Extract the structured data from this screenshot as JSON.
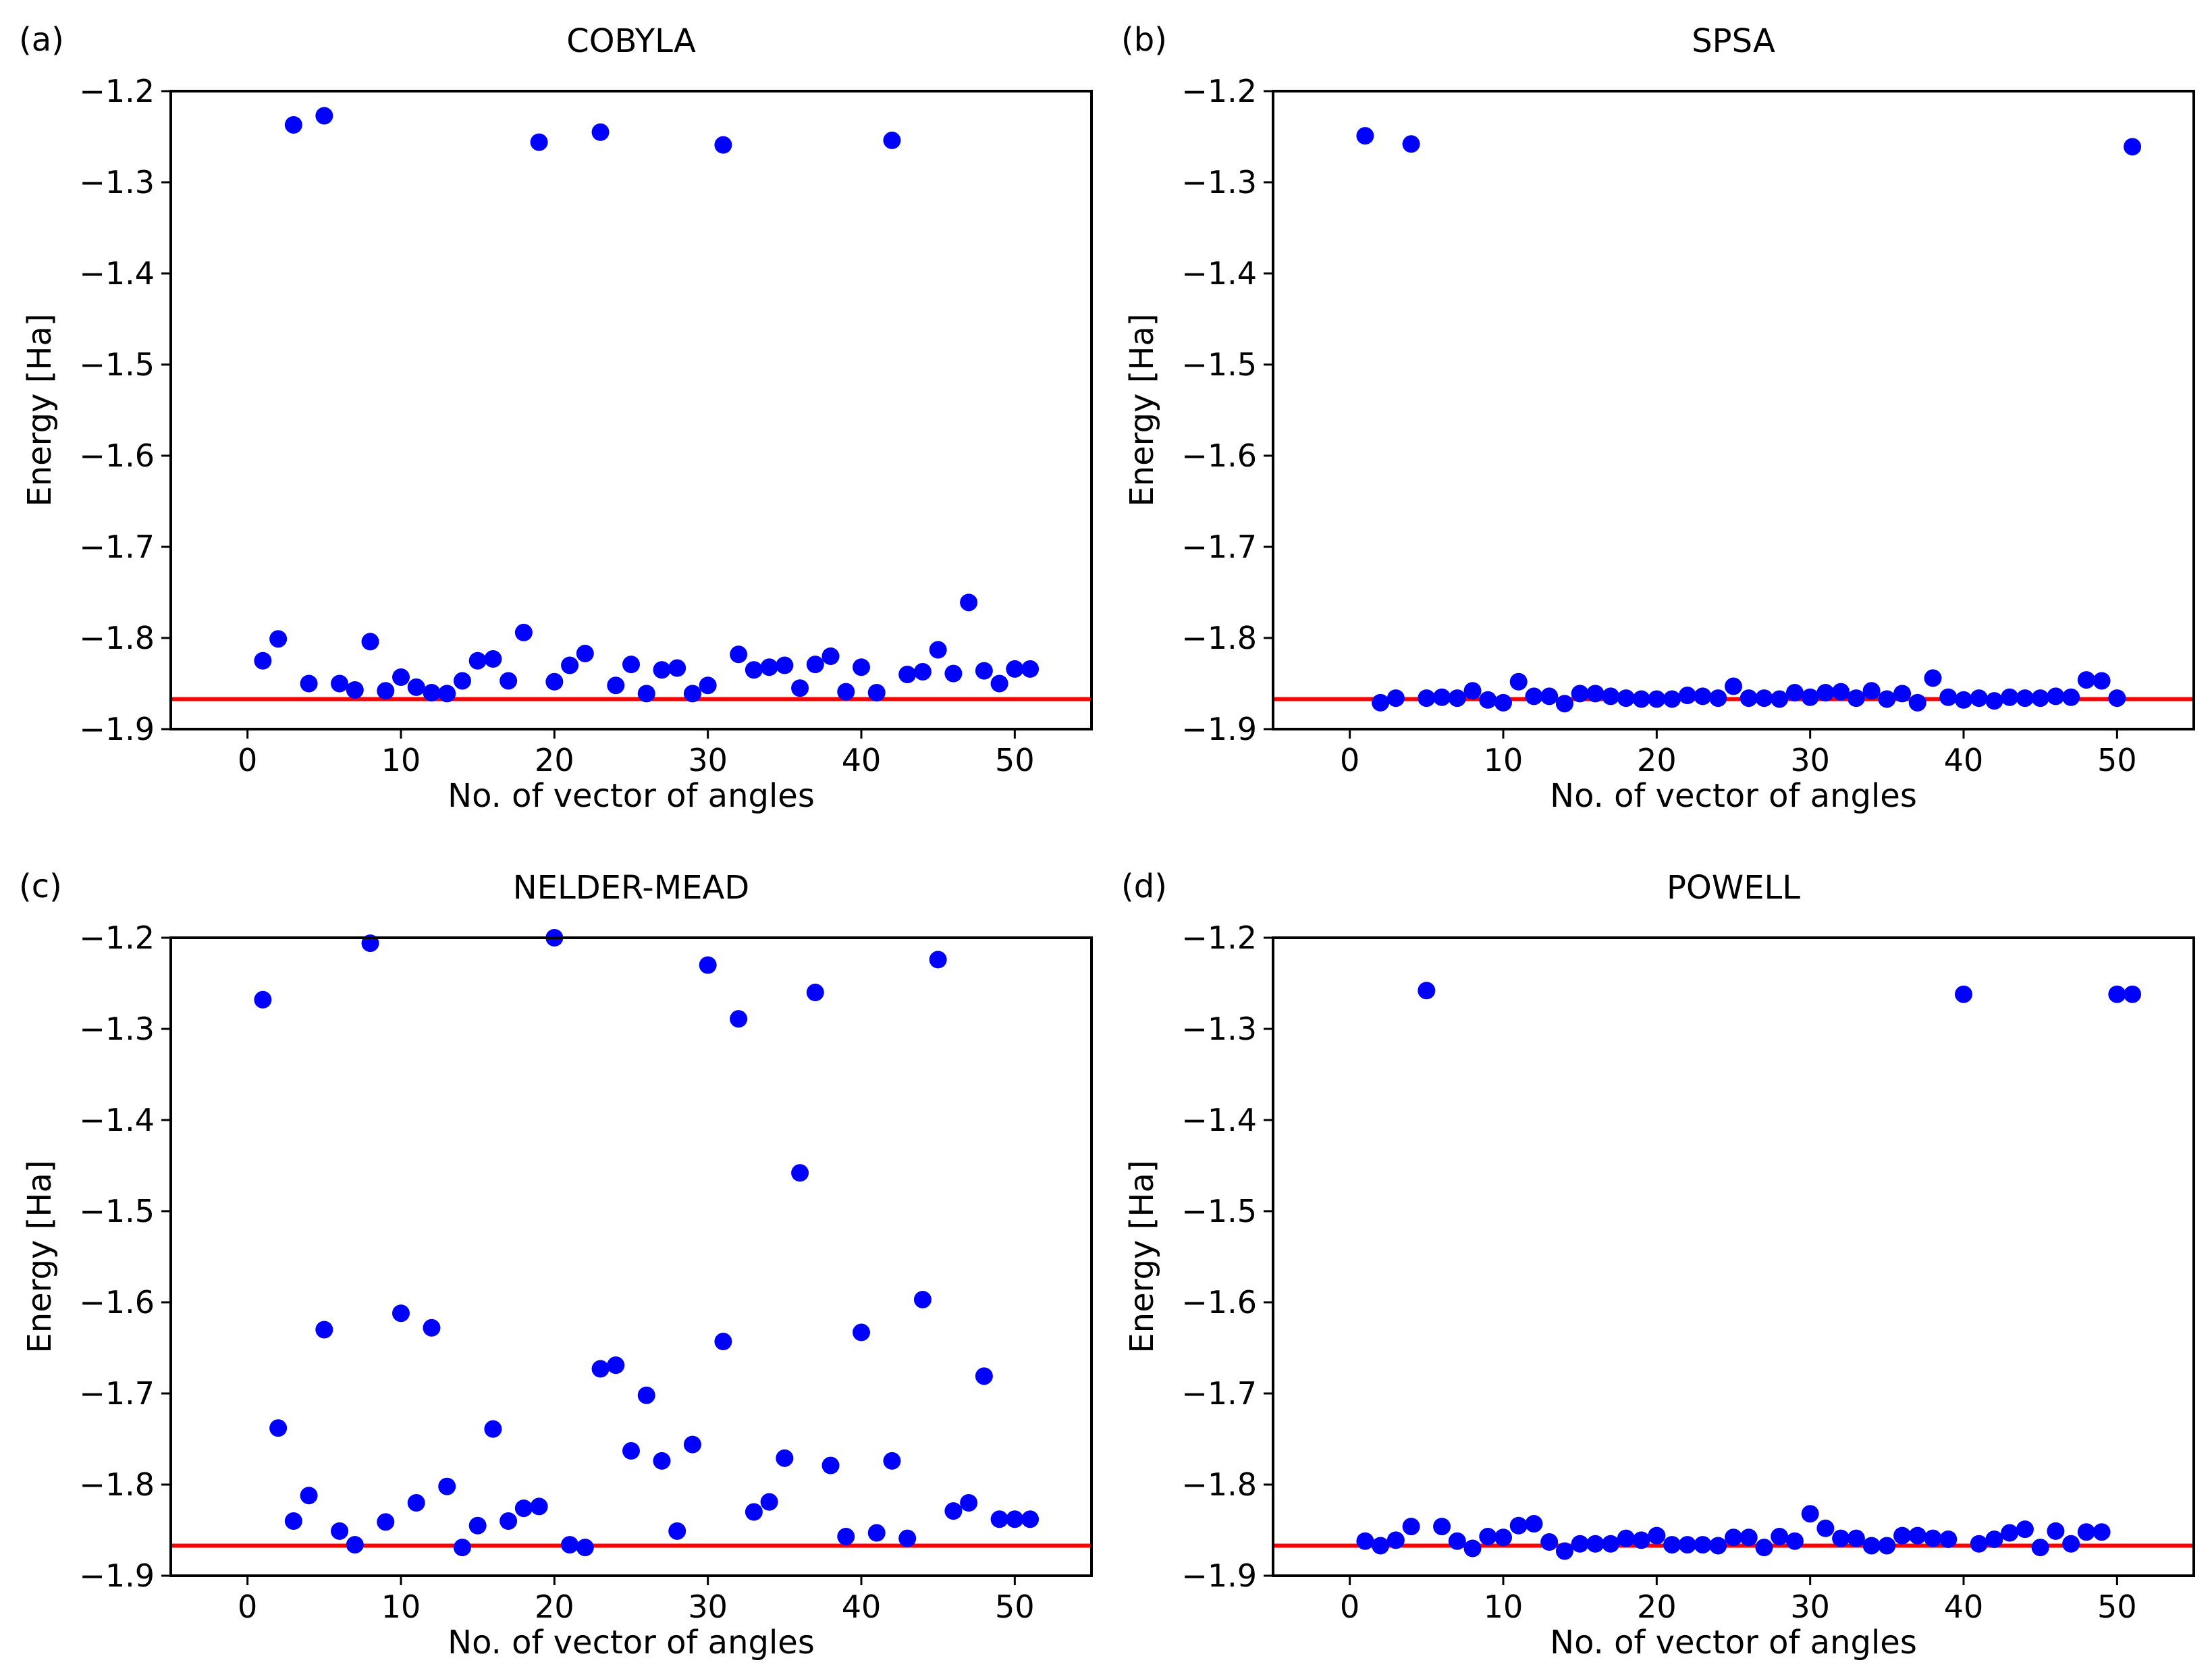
{
  "colors": {
    "points": "#0000ff",
    "reference": "#ff0000",
    "axes": "#000000"
  },
  "chart_data": [
    {
      "type": "scatter",
      "panel": "(a)",
      "title": "COBYLA",
      "xlabel": "No. of vector of angles",
      "ylabel": "Energy [Ha]",
      "xlim": [
        -5,
        55
      ],
      "ylim": [
        -1.9,
        -1.2
      ],
      "xticks": [
        0,
        10,
        20,
        30,
        40,
        50
      ],
      "yticks": [
        -1.2,
        -1.3,
        -1.4,
        -1.5,
        -1.6,
        -1.7,
        -1.8,
        -1.9
      ],
      "yticklabels": [
        "−1.2",
        "−1.3",
        "−1.4",
        "−1.5",
        "−1.6",
        "−1.7",
        "−1.8",
        "−1.9"
      ],
      "reference_energy": -1.867,
      "x": [
        1,
        2,
        3,
        4,
        5,
        6,
        7,
        8,
        9,
        10,
        11,
        12,
        13,
        14,
        15,
        16,
        17,
        18,
        19,
        20,
        21,
        22,
        23,
        24,
        25,
        26,
        27,
        28,
        29,
        30,
        31,
        32,
        33,
        34,
        35,
        36,
        37,
        38,
        39,
        40,
        41,
        42,
        43,
        44,
        45,
        46,
        47,
        48,
        49,
        50,
        51
      ],
      "y": [
        -1.825,
        -1.801,
        -1.237,
        -1.85,
        -1.227,
        -1.85,
        -1.857,
        -1.804,
        -1.858,
        -1.843,
        -1.854,
        -1.86,
        -1.861,
        -1.847,
        -1.825,
        -1.823,
        -1.847,
        -1.794,
        -1.256,
        -1.848,
        -1.83,
        -1.817,
        -1.245,
        -1.852,
        -1.829,
        -1.861,
        -1.835,
        -1.833,
        -1.861,
        -1.852,
        -1.259,
        -1.818,
        -1.835,
        -1.832,
        -1.83,
        -1.855,
        -1.829,
        -1.82,
        -1.859,
        -1.832,
        -1.86,
        -1.254,
        -1.84,
        -1.837,
        -1.813,
        -1.839,
        -1.761,
        -1.836,
        -1.85,
        -1.834,
        -1.834
      ]
    },
    {
      "type": "scatter",
      "panel": "(b)",
      "title": "SPSA",
      "xlabel": "No. of vector of angles",
      "ylabel": "Energy [Ha]",
      "xlim": [
        -5,
        55
      ],
      "ylim": [
        -1.9,
        -1.2
      ],
      "xticks": [
        0,
        10,
        20,
        30,
        40,
        50
      ],
      "yticks": [
        -1.2,
        -1.3,
        -1.4,
        -1.5,
        -1.6,
        -1.7,
        -1.8,
        -1.9
      ],
      "yticklabels": [
        "−1.2",
        "−1.3",
        "−1.4",
        "−1.5",
        "−1.6",
        "−1.7",
        "−1.8",
        "−1.9"
      ],
      "reference_energy": -1.867,
      "x": [
        1,
        2,
        3,
        4,
        5,
        6,
        7,
        8,
        9,
        10,
        11,
        12,
        13,
        14,
        15,
        16,
        17,
        18,
        19,
        20,
        21,
        22,
        23,
        24,
        25,
        26,
        27,
        28,
        29,
        30,
        31,
        32,
        33,
        34,
        35,
        36,
        37,
        38,
        39,
        40,
        41,
        42,
        43,
        44,
        45,
        46,
        47,
        48,
        49,
        50,
        51
      ],
      "y": [
        -1.249,
        -1.871,
        -1.866,
        -1.258,
        -1.866,
        -1.865,
        -1.866,
        -1.858,
        -1.868,
        -1.871,
        -1.848,
        -1.864,
        -1.864,
        -1.872,
        -1.861,
        -1.861,
        -1.864,
        -1.866,
        -1.867,
        -1.867,
        -1.867,
        -1.863,
        -1.864,
        -1.866,
        -1.853,
        -1.866,
        -1.866,
        -1.867,
        -1.86,
        -1.865,
        -1.86,
        -1.859,
        -1.866,
        -1.858,
        -1.867,
        -1.861,
        -1.871,
        -1.844,
        -1.865,
        -1.868,
        -1.866,
        -1.869,
        -1.865,
        -1.866,
        -1.866,
        -1.864,
        -1.865,
        -1.846,
        -1.847,
        -1.866,
        -1.261
      ]
    },
    {
      "type": "scatter",
      "panel": "(c)",
      "title": "NELDER-MEAD",
      "xlabel": "No. of vector of angles",
      "ylabel": "Energy [Ha]",
      "xlim": [
        -5,
        55
      ],
      "ylim": [
        -1.9,
        -1.2
      ],
      "xticks": [
        0,
        10,
        20,
        30,
        40,
        50
      ],
      "yticks": [
        -1.2,
        -1.3,
        -1.4,
        -1.5,
        -1.6,
        -1.7,
        -1.8,
        -1.9
      ],
      "yticklabels": [
        "−1.2",
        "−1.3",
        "−1.4",
        "−1.5",
        "−1.6",
        "−1.7",
        "−1.8",
        "−1.9"
      ],
      "reference_energy": -1.867,
      "x": [
        1,
        2,
        3,
        4,
        5,
        6,
        7,
        8,
        9,
        10,
        11,
        12,
        13,
        14,
        15,
        16,
        17,
        18,
        19,
        20,
        21,
        22,
        23,
        24,
        25,
        26,
        27,
        28,
        29,
        30,
        31,
        32,
        33,
        34,
        35,
        36,
        37,
        38,
        39,
        40,
        41,
        42,
        43,
        44,
        45,
        46,
        47,
        48,
        49,
        50,
        51
      ],
      "y": [
        -1.268,
        -1.738,
        -1.84,
        -1.812,
        -1.63,
        -1.851,
        -1.866,
        -1.206,
        -1.841,
        -1.612,
        -1.82,
        -1.628,
        -1.802,
        -1.869,
        -1.845,
        -1.739,
        -1.84,
        -1.826,
        -1.824,
        -1.2,
        -1.866,
        -1.869,
        -1.673,
        -1.669,
        -1.763,
        -1.702,
        -1.774,
        -1.851,
        -1.756,
        -1.23,
        -1.643,
        -1.289,
        -1.83,
        -1.819,
        -1.771,
        -1.458,
        -1.26,
        -1.779,
        -1.857,
        -1.633,
        -1.853,
        -1.774,
        -1.859,
        -1.597,
        -1.224,
        -1.829,
        -1.82,
        -1.681,
        -1.838,
        -1.838,
        -1.838
      ]
    },
    {
      "type": "scatter",
      "panel": "(d)",
      "title": "POWELL",
      "xlabel": "No. of vector of angles",
      "ylabel": "Energy [Ha]",
      "xlim": [
        -5,
        55
      ],
      "ylim": [
        -1.9,
        -1.2
      ],
      "xticks": [
        0,
        10,
        20,
        30,
        40,
        50
      ],
      "yticks": [
        -1.2,
        -1.3,
        -1.4,
        -1.5,
        -1.6,
        -1.7,
        -1.8,
        -1.9
      ],
      "yticklabels": [
        "−1.2",
        "−1.3",
        "−1.4",
        "−1.5",
        "−1.6",
        "−1.7",
        "−1.8",
        "−1.9"
      ],
      "reference_energy": -1.867,
      "x": [
        1,
        2,
        3,
        4,
        5,
        6,
        7,
        8,
        9,
        10,
        11,
        12,
        13,
        14,
        15,
        16,
        17,
        18,
        19,
        20,
        21,
        22,
        23,
        24,
        25,
        26,
        27,
        28,
        29,
        30,
        31,
        32,
        33,
        34,
        35,
        36,
        37,
        38,
        39,
        40,
        41,
        42,
        43,
        44,
        45,
        46,
        47,
        48,
        49,
        50,
        51
      ],
      "y": [
        -1.862,
        -1.867,
        -1.861,
        -1.846,
        -1.258,
        -1.846,
        -1.862,
        -1.87,
        -1.857,
        -1.858,
        -1.845,
        -1.843,
        -1.863,
        -1.873,
        -1.865,
        -1.865,
        -1.865,
        -1.859,
        -1.861,
        -1.856,
        -1.866,
        -1.866,
        -1.866,
        -1.867,
        -1.858,
        -1.858,
        -1.869,
        -1.857,
        -1.862,
        -1.832,
        -1.848,
        -1.859,
        -1.859,
        -1.867,
        -1.867,
        -1.856,
        -1.856,
        -1.859,
        -1.86,
        -1.262,
        -1.865,
        -1.86,
        -1.853,
        -1.849,
        -1.869,
        -1.851,
        -1.865,
        -1.852,
        -1.852,
        -1.262,
        -1.262
      ]
    }
  ]
}
